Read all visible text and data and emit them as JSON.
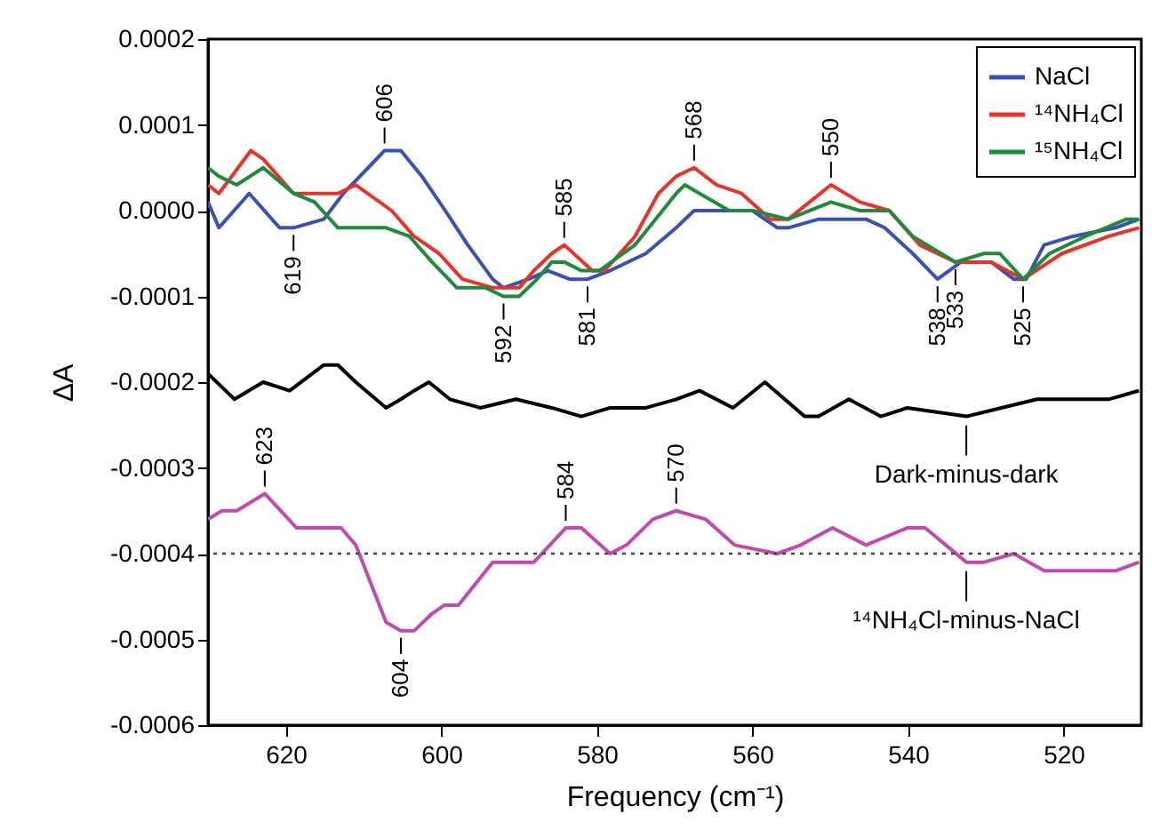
{
  "chart_data": {
    "type": "line",
    "xlabel": "Frequency (cm⁻¹)",
    "ylabel": "ΔA",
    "xlim": [
      630,
      510
    ],
    "xticks": [
      620,
      600,
      580,
      560,
      540,
      520
    ],
    "ylim": [
      -0.0006,
      0.0002
    ],
    "yticks": [
      0.0002,
      0.0001,
      {
        "value": 0,
        "label": "0.0000"
      },
      -0.0001,
      -0.0002,
      -0.0003,
      -0.0004,
      -0.0005,
      -0.0006
    ],
    "grid": false,
    "legend": "top right",
    "marker": "none",
    "line_style": "solid",
    "ref_lines": [
      {
        "axis": "y",
        "value": -0.0004,
        "line_style": "dotted",
        "color": "#444444"
      }
    ],
    "series": [
      {
        "name": "NaCl",
        "color": "#3a50b4",
        "x": [
          630,
          628.6,
          624.7,
          620.8,
          619,
          615.1,
          612.6,
          609.4,
          607.3,
          605.2,
          602.5,
          599.5,
          596.6,
          593.4,
          592,
          588.8,
          586.3,
          583.5,
          581.2,
          578.3,
          573.7,
          569.8,
          567.5,
          563,
          560,
          556.8,
          555.4,
          551.5,
          545.4,
          543,
          539.4,
          536.2,
          533.2,
          529.3,
          526.4,
          524.8,
          522.5,
          518.8,
          513.3,
          510.3
        ],
        "values": [
          1e-05,
          -2e-05,
          2e-05,
          -2e-05,
          -2e-05,
          -1e-05,
          2e-05,
          5e-05,
          7e-05,
          7e-05,
          4e-05,
          0,
          -4e-05,
          -8e-05,
          -9e-05,
          -8e-05,
          -7e-05,
          -8e-05,
          -8e-05,
          -7e-05,
          -5e-05,
          -2e-05,
          0,
          0,
          0,
          -2e-05,
          -2e-05,
          -1e-05,
          -1e-05,
          -2e-05,
          -5e-05,
          -8e-05,
          -6e-05,
          -6e-05,
          -8e-05,
          -8e-05,
          -4e-05,
          -3e-05,
          -2e-05,
          -1e-05
        ]
      },
      {
        "name": "¹⁴NH₄Cl",
        "color": "#e8332a",
        "x": [
          630,
          628.6,
          624.5,
          622.9,
          619,
          616.7,
          613.3,
          611,
          606.4,
          603.5,
          600.3,
          597.3,
          593.4,
          591.6,
          590,
          588.1,
          585.8,
          584.2,
          580.6,
          579,
          575.1,
          572.1,
          569.8,
          567.5,
          564.6,
          561.4,
          557.7,
          555.4,
          549.9,
          546.2,
          542.4,
          538.5,
          533.9,
          529.3,
          525.2,
          520.2,
          514.2,
          510.3
        ],
        "values": [
          3e-05,
          2e-05,
          7e-05,
          6e-05,
          2e-05,
          2e-05,
          2e-05,
          3e-05,
          0,
          -3e-05,
          -5e-05,
          -8e-05,
          -9e-05,
          -9e-05,
          -9e-05,
          -7e-05,
          -5e-05,
          -4e-05,
          -7e-05,
          -7e-05,
          -3e-05,
          2e-05,
          4e-05,
          5e-05,
          3e-05,
          2e-05,
          -1e-05,
          -1e-05,
          3e-05,
          1e-05,
          0,
          -4e-05,
          -6e-05,
          -6e-05,
          -8e-05,
          -5e-05,
          -3e-05,
          -2e-05
        ]
      },
      {
        "name": "¹⁵NH₄Cl",
        "color": "#1f8a3c",
        "x": [
          630,
          628.6,
          626.3,
          622.9,
          619,
          616.3,
          613.3,
          611,
          607.1,
          604.1,
          601.2,
          598,
          594.3,
          592,
          590,
          587.7,
          585.8,
          584.2,
          582,
          579.7,
          575.1,
          569.8,
          568.7,
          566.8,
          563,
          560,
          555.4,
          549.9,
          546.2,
          542.4,
          539.4,
          533.9,
          530.2,
          528.2,
          525.2,
          521.8,
          517.2,
          511.9,
          510.3
        ],
        "values": [
          5e-05,
          4e-05,
          3e-05,
          5e-05,
          2e-05,
          1e-05,
          -2e-05,
          -2e-05,
          -2e-05,
          -3e-05,
          -6e-05,
          -9e-05,
          -9e-05,
          -0.0001,
          -0.0001,
          -8e-05,
          -6e-05,
          -6e-05,
          -7e-05,
          -7e-05,
          -4e-05,
          2e-05,
          3e-05,
          2e-05,
          0,
          0,
          -1e-05,
          1e-05,
          0,
          0,
          -3e-05,
          -6e-05,
          -5e-05,
          -5e-05,
          -8e-05,
          -5e-05,
          -3e-05,
          -1e-05,
          -1e-05
        ]
      },
      {
        "color": "#000000",
        "x": [
          630,
          626.6,
          622.9,
          619.5,
          615.1,
          613.3,
          611,
          607.1,
          605.2,
          603.5,
          601.6,
          598.9,
          595,
          590.4,
          585.8,
          582,
          578.3,
          573.7,
          569.8,
          566.8,
          562.5,
          558.4,
          553.3,
          551.5,
          547.6,
          543.5,
          540.1,
          532.5,
          528,
          523.4,
          518.8,
          514.2,
          510.3
        ],
        "values": [
          -0.00019,
          -0.00022,
          -0.0002,
          -0.00021,
          -0.00018,
          -0.00018,
          -0.0002,
          -0.00023,
          -0.00022,
          -0.00021,
          -0.0002,
          -0.00022,
          -0.00023,
          -0.00022,
          -0.00023,
          -0.00024,
          -0.00023,
          -0.00023,
          -0.00022,
          -0.00021,
          -0.00023,
          -0.0002,
          -0.00024,
          -0.00024,
          -0.00022,
          -0.00024,
          -0.00023,
          -0.00024,
          -0.00023,
          -0.00022,
          -0.00022,
          -0.00022,
          -0.00021
        ]
      },
      {
        "color": "#c04aad",
        "x": [
          630,
          628.2,
          626.3,
          622.7,
          618.6,
          616.3,
          612.9,
          611,
          607.1,
          605.2,
          603.5,
          601.2,
          599.6,
          597.8,
          593.4,
          592,
          589.7,
          588.1,
          584,
          582,
          578.3,
          576.2,
          572.8,
          569.8,
          566,
          562.3,
          556.8,
          553.8,
          549.7,
          545.4,
          540.1,
          537.8,
          532.5,
          530.2,
          526.4,
          522.5,
          518.8,
          513.3,
          510.3
        ],
        "values": [
          -0.00036,
          -0.00035,
          -0.00035,
          -0.00033,
          -0.00037,
          -0.00037,
          -0.00037,
          -0.00039,
          -0.00048,
          -0.00049,
          -0.00049,
          -0.00047,
          -0.00046,
          -0.00046,
          -0.00041,
          -0.00041,
          -0.00041,
          -0.00041,
          -0.00037,
          -0.00037,
          -0.0004,
          -0.00039,
          -0.00036,
          -0.00035,
          -0.00036,
          -0.00039,
          -0.0004,
          -0.00039,
          -0.00037,
          -0.00039,
          -0.00037,
          -0.00037,
          -0.00041,
          -0.00041,
          -0.0004,
          -0.00042,
          -0.00042,
          -0.00042,
          -0.00041
        ]
      }
    ],
    "annotations": [
      {
        "text": "606",
        "x": 607.3,
        "y": 7e-05
      },
      {
        "text": "619",
        "x": 619,
        "y": -2e-05
      },
      {
        "text": "592",
        "x": 592,
        "y": -0.0001
      },
      {
        "text": "585",
        "x": 584.2,
        "y": -4e-05
      },
      {
        "text": "581",
        "x": 581.2,
        "y": -8e-05
      },
      {
        "text": "568",
        "x": 567.5,
        "y": 5e-05
      },
      {
        "text": "550",
        "x": 549.9,
        "y": 3e-05
      },
      {
        "text": "538",
        "x": 536.2,
        "y": -8e-05
      },
      {
        "text": "533",
        "x": 533.9,
        "y": -6e-05
      },
      {
        "text": "525",
        "x": 525.2,
        "y": -8e-05
      },
      {
        "text": "623",
        "x": 622.7,
        "y": -0.00033
      },
      {
        "text": "604",
        "x": 605.2,
        "y": -0.00049
      },
      {
        "text": "584",
        "x": 584,
        "y": -0.00037
      },
      {
        "text": "570",
        "x": 569.8,
        "y": -0.00035
      },
      {
        "text": "Dark-minus-dark",
        "x": 532.5,
        "y": -0.00024
      },
      {
        "text": "¹⁴NH₄Cl-minus-NaCl",
        "x": 532.5,
        "y": -0.00041
      }
    ]
  }
}
